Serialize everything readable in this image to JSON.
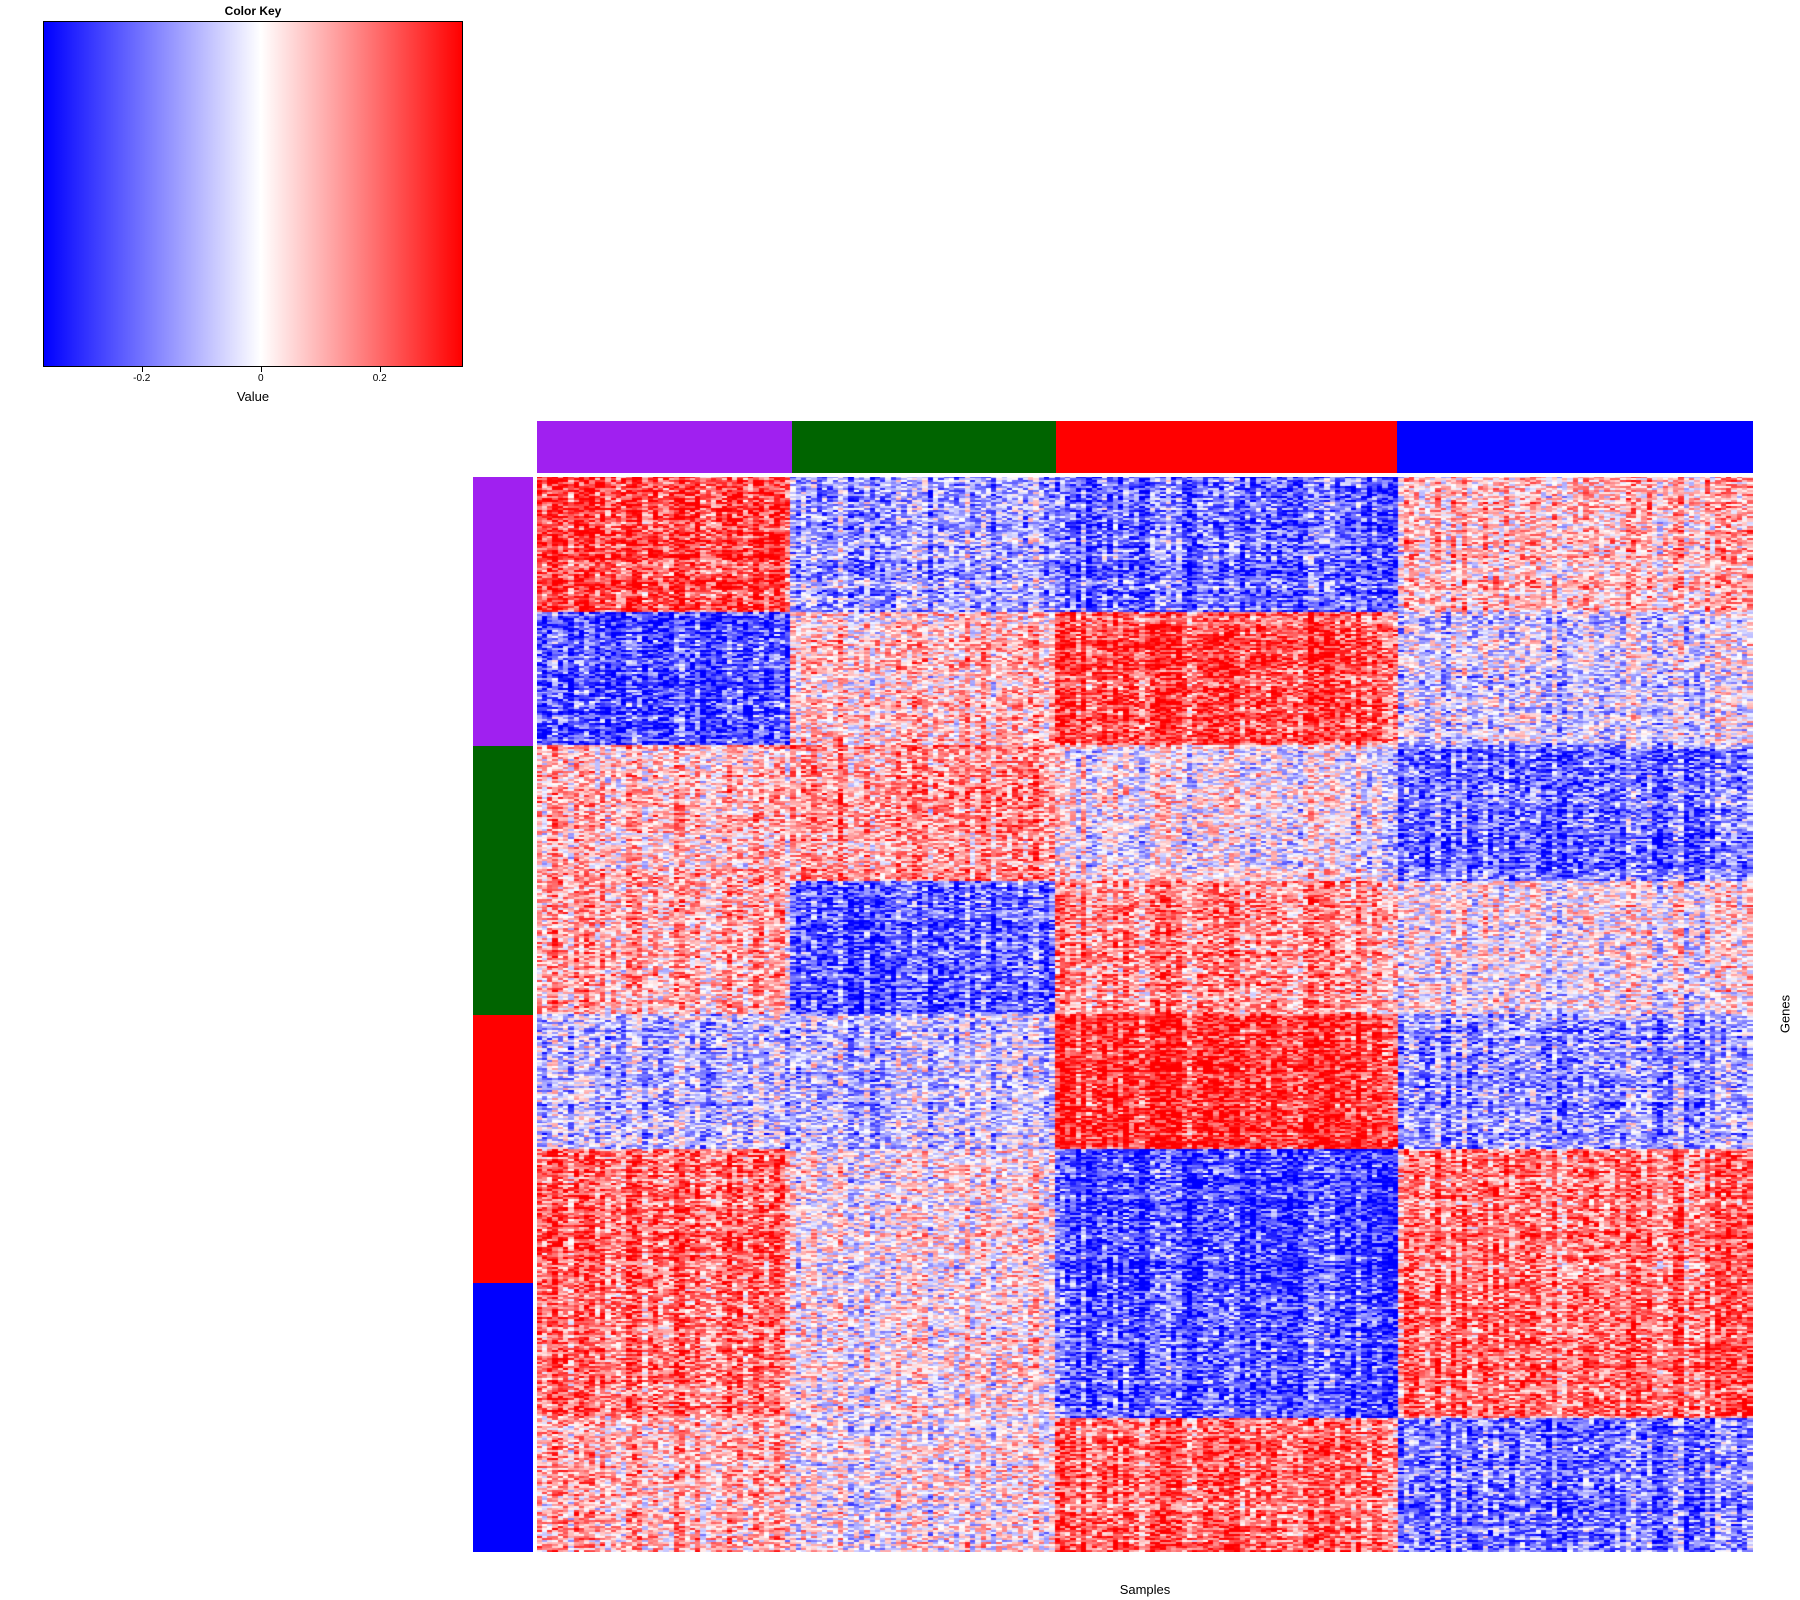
{
  "chart_data": {
    "type": "heatmap",
    "color_key": {
      "title": "Color Key",
      "xlabel": "Value",
      "range": [
        -0.366,
        0.34
      ],
      "ticks": [
        -0.2,
        0,
        0.2
      ],
      "tick_labels": [
        "-0.2",
        "0",
        "0.2"
      ],
      "colors": [
        "#0000ff",
        "#ffffff",
        "#ff0000"
      ]
    },
    "xlabel": "Samples",
    "ylabel": "Genes",
    "column_groups": [
      {
        "color": "#a020f0",
        "share": 0.21
      },
      {
        "color": "#006400",
        "share": 0.217
      },
      {
        "color": "#ff0000",
        "share": 0.28
      },
      {
        "color": "#0000ff",
        "share": 0.293
      }
    ],
    "row_groups": [
      {
        "color": "#a020f0",
        "blocks": 2
      },
      {
        "color": "#006400",
        "blocks": 2
      },
      {
        "color": "#ff0000",
        "blocks": 2
      },
      {
        "color": "#0000ff",
        "blocks": 2
      }
    ],
    "block_means": [
      [
        0.25,
        -0.12,
        -0.2,
        0.08
      ],
      [
        -0.25,
        0.08,
        0.25,
        -0.05
      ],
      [
        0.08,
        0.15,
        0.0,
        -0.2
      ],
      [
        0.1,
        -0.22,
        0.15,
        0.0
      ],
      [
        -0.1,
        -0.08,
        0.28,
        -0.15
      ],
      [
        0.2,
        0.02,
        -0.25,
        0.18
      ],
      [
        0.18,
        0.02,
        -0.22,
        0.2
      ],
      [
        0.08,
        0.0,
        0.2,
        -0.2
      ]
    ]
  }
}
